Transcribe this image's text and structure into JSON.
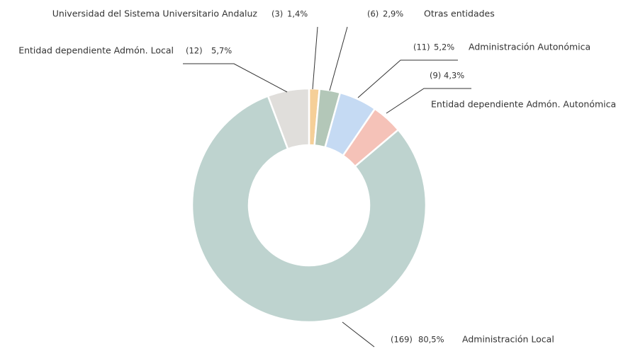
{
  "chart_data": {
    "type": "donut",
    "categories": [
      "Universidad del Sistema Universitario Andaluz",
      "Otras entidades",
      "Administración Autonómica",
      "Entidad dependiente Admón. Autonómica",
      "Administración Local",
      "Entidad dependiente Admón. Local"
    ],
    "values": [
      3,
      6,
      11,
      9,
      169,
      12
    ],
    "value_labels": [
      "(3)",
      "(6)",
      "(11)",
      "(9)",
      "(169)",
      "(12)"
    ],
    "percents": [
      1.4,
      2.9,
      5.2,
      4.3,
      80.5,
      5.7
    ],
    "percent_labels": [
      "1,4%",
      "2,9%",
      "5,2%",
      "4,3%",
      "80,5%",
      "5,7%"
    ],
    "colors": [
      "#f5cf98",
      "#b3c7b8",
      "#c5daf3",
      "#f5c2b8",
      "#bed3cf",
      "#e0dedb"
    ]
  }
}
